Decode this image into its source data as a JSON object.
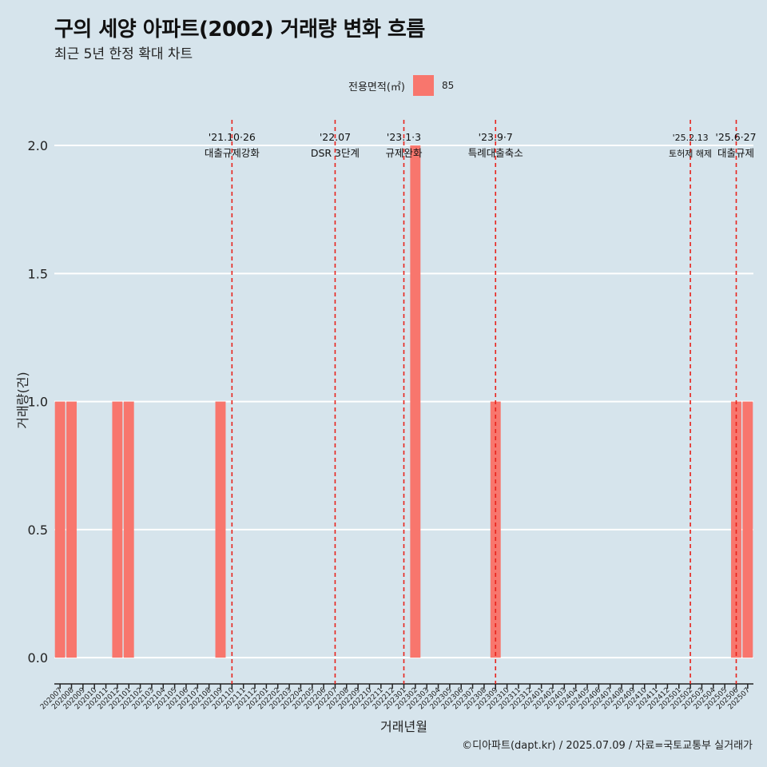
{
  "title": "구의 세양 아파트(2002) 거래량 변화 흐름",
  "subtitle": "최근 5년 한정 확대 차트",
  "caption": "©디아파트(dapt.kr) / 2025.07.09 / 자료=국토교통부 실거래가",
  "colors": {
    "background": "#d6e4ec",
    "bar": "#f8766d",
    "grid": "#ffffff",
    "event_line": "#e8231c"
  },
  "legend": {
    "title": "전용면적(㎡)",
    "position": "top",
    "items": [
      {
        "label": "85",
        "color": "#f8766d"
      }
    ]
  },
  "chart_data": {
    "type": "bar",
    "xlabel": "거래년월",
    "ylabel": "거래량(건)",
    "ylim": [
      0,
      2.1
    ],
    "yticks": [
      0.0,
      0.5,
      1.0,
      1.5,
      2.0
    ],
    "ytick_labels": [
      "0.0",
      "0.5",
      "1.0",
      "1.5",
      "2.0"
    ],
    "grid": "horizontal",
    "categories": [
      "202007",
      "202008",
      "202009",
      "202010",
      "202011",
      "202012",
      "202101",
      "202102",
      "202103",
      "202104",
      "202105",
      "202106",
      "202107",
      "202108",
      "202109",
      "202110",
      "202111",
      "202112",
      "202201",
      "202202",
      "202203",
      "202204",
      "202205",
      "202206",
      "202207",
      "202208",
      "202209",
      "202210",
      "202211",
      "202212",
      "202301",
      "202302",
      "202303",
      "202304",
      "202305",
      "202306",
      "202307",
      "202308",
      "202309",
      "202310",
      "202311",
      "202312",
      "202401",
      "202402",
      "202403",
      "202404",
      "202405",
      "202406",
      "202407",
      "202408",
      "202409",
      "202410",
      "202411",
      "202412",
      "202501",
      "202502",
      "202503",
      "202504",
      "202505",
      "202506",
      "202507"
    ],
    "series": [
      {
        "name": "85",
        "values": [
          1,
          1,
          0,
          0,
          0,
          1,
          1,
          0,
          0,
          0,
          0,
          0,
          0,
          0,
          1,
          0,
          0,
          0,
          0,
          0,
          0,
          0,
          0,
          0,
          0,
          0,
          0,
          0,
          0,
          0,
          0,
          2,
          0,
          0,
          0,
          0,
          0,
          0,
          1,
          0,
          0,
          0,
          0,
          0,
          0,
          0,
          0,
          0,
          0,
          0,
          0,
          0,
          0,
          0,
          0,
          0,
          0,
          0,
          0,
          1,
          1
        ]
      }
    ],
    "events": [
      {
        "category": "202110",
        "date": "'21.10·26",
        "label": "대출규제강화"
      },
      {
        "category": "202207",
        "date": "'22.07",
        "label": "DSR 3단계"
      },
      {
        "category": "202301",
        "date": "'23.1·3",
        "label": "규제완화"
      },
      {
        "category": "202309",
        "date": "'23.9·7",
        "label": "특례대출축소"
      },
      {
        "category": "202502",
        "date": "'25.2.13",
        "label": "토허제 해제"
      },
      {
        "category": "202506",
        "date": "'25.6·27",
        "label": "대출규제"
      }
    ]
  }
}
